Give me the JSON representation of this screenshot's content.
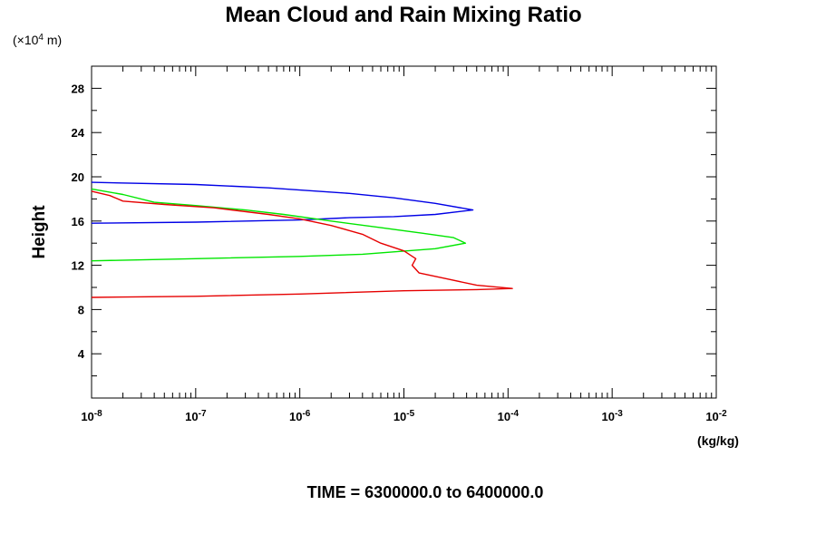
{
  "chart_data": {
    "type": "line",
    "title": "Mean Cloud and Rain Mixing Ratio",
    "ylabel": "Height",
    "y_unit_base": "(×10",
    "y_unit_exp": "4",
    "y_unit_tail": " m)",
    "xlabel_unit": "(kg/kg)",
    "footer": "TIME = 6300000.0 to 6400000.0",
    "x_scale": "log",
    "xlim": [
      1e-08,
      0.01
    ],
    "ylim": [
      0,
      30
    ],
    "x_tick_base": "10",
    "x_ticks": [
      {
        "value": 1e-08,
        "exp": "-8"
      },
      {
        "value": 1e-07,
        "exp": "-7"
      },
      {
        "value": 1e-06,
        "exp": "-6"
      },
      {
        "value": 1e-05,
        "exp": "-5"
      },
      {
        "value": 0.0001,
        "exp": "-4"
      },
      {
        "value": 0.001,
        "exp": "-3"
      },
      {
        "value": 0.01,
        "exp": "-2"
      }
    ],
    "y_ticks": [
      4,
      8,
      12,
      16,
      20,
      24,
      28
    ],
    "grid": false,
    "series": [
      {
        "color": "#0000e6",
        "points": [
          [
            1e-08,
            19.5
          ],
          [
            1e-07,
            19.3
          ],
          [
            5e-07,
            19.0
          ],
          [
            1e-06,
            18.8
          ],
          [
            3e-06,
            18.5
          ],
          [
            8e-06,
            18.1
          ],
          [
            2e-05,
            17.6
          ],
          [
            4.6e-05,
            17.0
          ],
          [
            2e-05,
            16.6
          ],
          [
            8e-06,
            16.4
          ],
          [
            3e-06,
            16.3
          ],
          [
            1e-06,
            16.1
          ],
          [
            1e-07,
            15.9
          ],
          [
            1e-08,
            15.8
          ]
        ]
      },
      {
        "color": "#00e600",
        "points": [
          [
            1e-08,
            18.9
          ],
          [
            2e-08,
            18.4
          ],
          [
            4e-08,
            17.7
          ],
          [
            1e-07,
            17.4
          ],
          [
            3e-07,
            17.0
          ],
          [
            7e-07,
            16.6
          ],
          [
            2e-06,
            16.0
          ],
          [
            6e-06,
            15.4
          ],
          [
            1.5e-05,
            14.9
          ],
          [
            3e-05,
            14.5
          ],
          [
            3.9e-05,
            14.0
          ],
          [
            2e-05,
            13.5
          ],
          [
            4e-06,
            13.0
          ],
          [
            1e-06,
            12.8
          ],
          [
            1e-07,
            12.6
          ],
          [
            1e-08,
            12.4
          ]
        ]
      },
      {
        "color": "#e60000",
        "points": [
          [
            1e-08,
            18.7
          ],
          [
            1.5e-08,
            18.3
          ],
          [
            2e-08,
            17.8
          ],
          [
            5e-08,
            17.5
          ],
          [
            1.5e-07,
            17.2
          ],
          [
            5e-07,
            16.6
          ],
          [
            1e-06,
            16.2
          ],
          [
            2e-06,
            15.6
          ],
          [
            4e-06,
            14.8
          ],
          [
            6e-06,
            14.0
          ],
          [
            1e-05,
            13.3
          ],
          [
            1.3e-05,
            12.6
          ],
          [
            1.2e-05,
            12.0
          ],
          [
            1.4e-05,
            11.3
          ],
          [
            2.5e-05,
            10.8
          ],
          [
            5e-05,
            10.2
          ],
          [
            0.00011,
            9.9
          ],
          [
            5e-05,
            9.8
          ],
          [
            1e-05,
            9.7
          ],
          [
            1e-06,
            9.4
          ],
          [
            1e-07,
            9.2
          ],
          [
            1e-08,
            9.1
          ]
        ]
      }
    ]
  }
}
